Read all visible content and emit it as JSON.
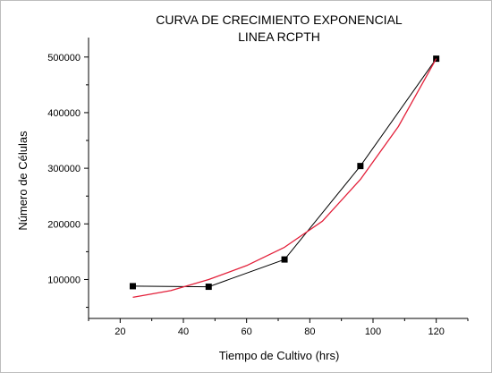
{
  "chart_data": {
    "type": "line",
    "title": "CURVA DE CRECIMIENTO EXPONENCIAL",
    "subtitle": "LINEA RCPTH",
    "xlabel": "Tiempo de Cultivo (hrs)",
    "ylabel": "Número de Células",
    "xlim": [
      10,
      130
    ],
    "ylim": [
      30000,
      535000
    ],
    "xticks": [
      20,
      40,
      60,
      80,
      100,
      120
    ],
    "xtick_labels": [
      "20",
      "40",
      "60",
      "80",
      "100",
      "120"
    ],
    "yticks": [
      100000,
      200000,
      300000,
      400000,
      500000
    ],
    "ytick_labels": [
      "100000",
      "200000",
      "300000",
      "400000",
      "500000"
    ],
    "grid": false,
    "series": [
      {
        "x": [
          24,
          48,
          72,
          96,
          120
        ],
        "y": [
          88000,
          87000,
          136000,
          304000,
          497000
        ],
        "color": "#000000",
        "marker": "square",
        "kind": "data"
      },
      {
        "kind": "fit",
        "fit_type": "exponential",
        "color": "#e3203a",
        "x": [
          24,
          36,
          48,
          60,
          72,
          84,
          96,
          108,
          120
        ],
        "y": [
          68000,
          80000,
          100000,
          125000,
          158000,
          205000,
          280000,
          375000,
          497000
        ]
      }
    ]
  }
}
